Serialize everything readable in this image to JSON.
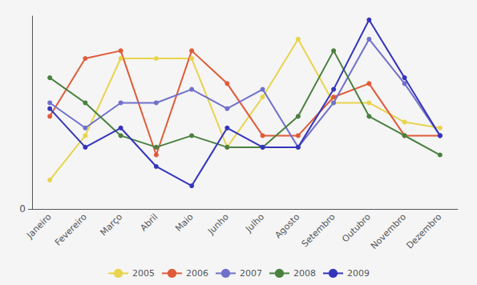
{
  "chart_data": {
    "type": "line",
    "categories": [
      "Janeiro",
      "Fevereiro",
      "Março",
      "Abril",
      "Maio",
      "Junho",
      "Julho",
      "Agosto",
      "Setembro",
      "Outubro",
      "Novembro",
      "Dezembro"
    ],
    "series": [
      {
        "name": "2005",
        "color": "#e8d44d",
        "values": [
          1.5,
          3.8,
          7.8,
          7.8,
          7.8,
          3.2,
          5.8,
          8.8,
          5.5,
          5.5,
          4.5,
          4.2
        ]
      },
      {
        "name": "2006",
        "color": "#e05b3a",
        "values": [
          4.8,
          7.8,
          8.2,
          2.8,
          8.2,
          6.5,
          3.8,
          3.8,
          5.8,
          6.5,
          3.8,
          3.8
        ]
      },
      {
        "name": "2007",
        "color": "#7070cc",
        "values": [
          5.5,
          4.2,
          5.5,
          5.5,
          6.2,
          5.2,
          6.2,
          3.2,
          5.5,
          8.8,
          6.5,
          3.8
        ]
      },
      {
        "name": "2008",
        "color": "#4a8040",
        "values": [
          6.8,
          5.5,
          3.8,
          3.2,
          3.8,
          3.2,
          3.2,
          4.8,
          8.2,
          4.8,
          3.8,
          2.8
        ]
      },
      {
        "name": "2009",
        "color": "#3535bb",
        "values": [
          5.2,
          3.2,
          4.2,
          2.2,
          1.2,
          4.2,
          3.2,
          3.2,
          6.2,
          9.8,
          6.8,
          3.8
        ]
      }
    ],
    "ylim": [
      0,
      10
    ],
    "yticks": [
      0
    ],
    "grid": true,
    "legend": "bottom",
    "marker": "circle"
  }
}
